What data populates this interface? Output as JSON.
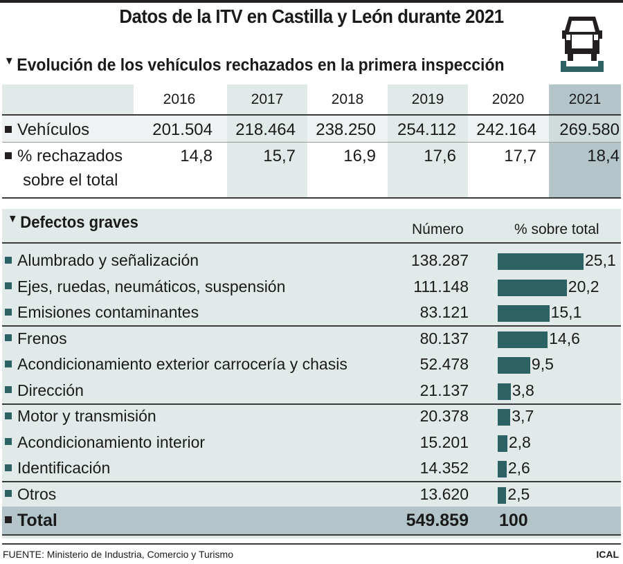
{
  "title": "Datos de la ITV en Castilla y León durante 2021",
  "section1_title": "Evolución de los vehículos rechazados en la primera inspección",
  "years": [
    "2016",
    "2017",
    "2018",
    "2019",
    "2020",
    "2021"
  ],
  "vehiculos_label": "Vehículos",
  "vehiculos": [
    "201.504",
    "218.464",
    "238.250",
    "254.112",
    "242.164",
    "269.580"
  ],
  "rechazados_label_1": "% rechazados",
  "rechazados_label_2": "sobre el total",
  "rechazados": [
    "14,8",
    "15,7",
    "16,9",
    "17,6",
    "17,7",
    "18,4"
  ],
  "section2_title": "Defectos graves",
  "col_numero": "Número",
  "col_pct": "% sobre total",
  "defects": [
    {
      "label": "Alumbrado y señalización",
      "numero": "138.287",
      "pct": "25,1",
      "value": 25.1
    },
    {
      "label": "Ejes, ruedas, neumáticos, suspensión",
      "numero": "111.148",
      "pct": "20,2",
      "value": 20.2
    },
    {
      "label": "Emisiones contaminantes",
      "numero": "83.121",
      "pct": "15,1",
      "value": 15.1
    },
    {
      "label": "Frenos",
      "numero": "80.137",
      "pct": "14,6",
      "value": 14.6
    },
    {
      "label": "Acondicionamiento exterior carrocería y chasis",
      "numero": "52.478",
      "pct": "9,5",
      "value": 9.5
    },
    {
      "label": "Dirección",
      "numero": "21.137",
      "pct": "3,8",
      "value": 3.8
    },
    {
      "label": "Motor y transmisión",
      "numero": "20.378",
      "pct": "3,7",
      "value": 3.7
    },
    {
      "label": "Acondicionamiento interior",
      "numero": "15.201",
      "pct": "2,8",
      "value": 2.8
    },
    {
      "label": "Identificación",
      "numero": "14.352",
      "pct": "2,6",
      "value": 2.6
    },
    {
      "label": "Otros",
      "numero": "13.620",
      "pct": "2,5",
      "value": 2.5
    }
  ],
  "total_label": "Total",
  "total_numero": "549.859",
  "total_pct": "100",
  "source": "FUENTE: Ministerio de Industria, Comercio y Turismo",
  "credit": "ICAL",
  "colors": {
    "bar": "#2d6265",
    "shade": "#e2e9e9",
    "highlight": "#b3c5c9"
  },
  "chart_data": {
    "type": "bar",
    "title": "Defectos graves",
    "categories": [
      "Alumbrado y señalización",
      "Ejes, ruedas, neumáticos, suspensión",
      "Emisiones contaminantes",
      "Frenos",
      "Acondicionamiento exterior carrocería y chasis",
      "Dirección",
      "Motor y transmisión",
      "Acondicionamiento interior",
      "Identificación",
      "Otros"
    ],
    "values": [
      25.1,
      20.2,
      15.1,
      14.6,
      9.5,
      3.8,
      3.7,
      2.8,
      2.6,
      2.5
    ],
    "xlabel": "% sobre total",
    "ylabel": ""
  }
}
